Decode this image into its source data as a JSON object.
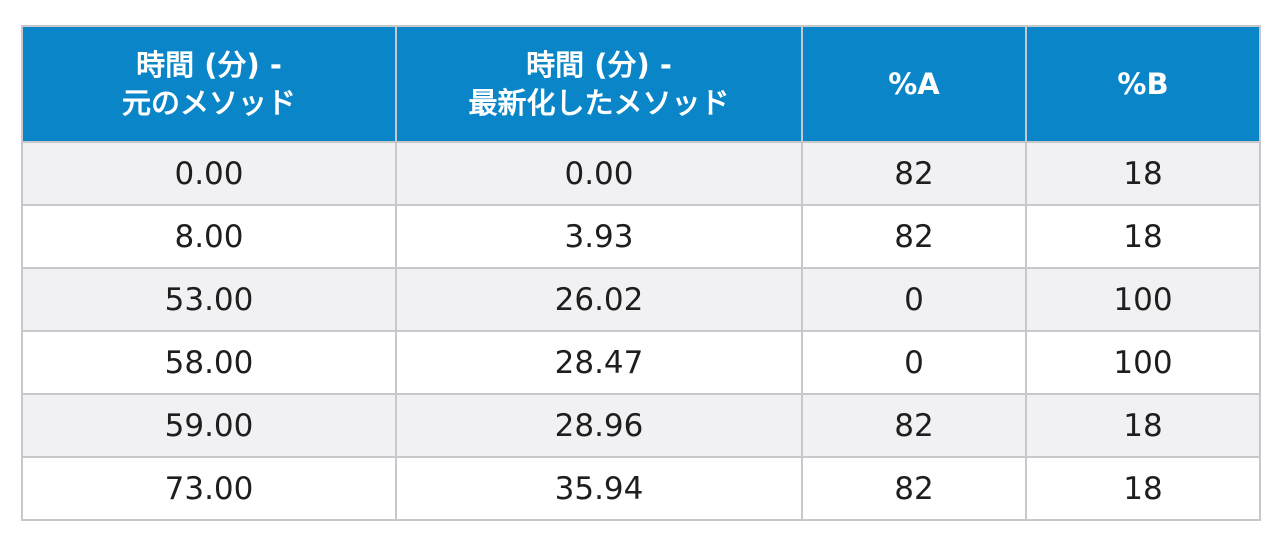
{
  "table": {
    "headers": [
      {
        "line1": "時間 (分) -",
        "line2": "元のメソッド"
      },
      {
        "line1": "時間 (分) -",
        "line2": "最新化したメソッド"
      },
      {
        "line1": "%A",
        "line2": ""
      },
      {
        "line1": "%B",
        "line2": ""
      }
    ],
    "rows": [
      [
        "0.00",
        "0.00",
        "82",
        "18"
      ],
      [
        "8.00",
        "3.93",
        "82",
        "18"
      ],
      [
        "53.00",
        "26.02",
        "0",
        "100"
      ],
      [
        "58.00",
        "28.47",
        "0",
        "100"
      ],
      [
        "59.00",
        "28.96",
        "82",
        "18"
      ],
      [
        "73.00",
        "35.94",
        "82",
        "18"
      ]
    ],
    "colors": {
      "header_bg": "#0a86c8",
      "header_text": "#ffffff",
      "row_alt_bg": "#f1f1f3",
      "border": "#c8c8cc"
    }
  }
}
